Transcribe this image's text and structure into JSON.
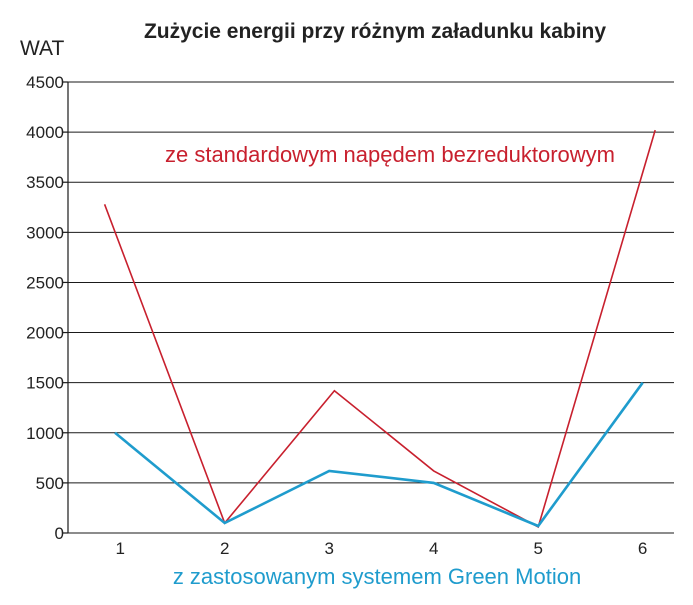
{
  "chart_data": {
    "type": "line",
    "title": "Zużycie energii przy różnym załadunku kabiny",
    "ylabel": "WAT",
    "xlabel": "",
    "x": [
      1,
      2,
      3,
      4,
      5,
      6
    ],
    "xticks": [
      "1",
      "2",
      "3",
      "4",
      "5",
      "6"
    ],
    "ylim": [
      0,
      4500
    ],
    "yticks": [
      "0",
      "500",
      "1000",
      "1500",
      "2000",
      "2500",
      "3000",
      "3500",
      "4000",
      "4500"
    ],
    "grid": true,
    "series": [
      {
        "name": "ze standardowym napędem bezreduktorowym",
        "color": "#c8202e",
        "x": [
          0.85,
          2,
          3.05,
          4,
          5,
          6.12
        ],
        "values": [
          3280,
          100,
          1420,
          620,
          60,
          4020
        ]
      },
      {
        "name": "z zastosowanym systemem Green Motion",
        "color": "#1f9ccd",
        "x": [
          0.95,
          2,
          3,
          4,
          5,
          6
        ],
        "values": [
          1000,
          100,
          620,
          500,
          70,
          1500
        ]
      }
    ]
  }
}
